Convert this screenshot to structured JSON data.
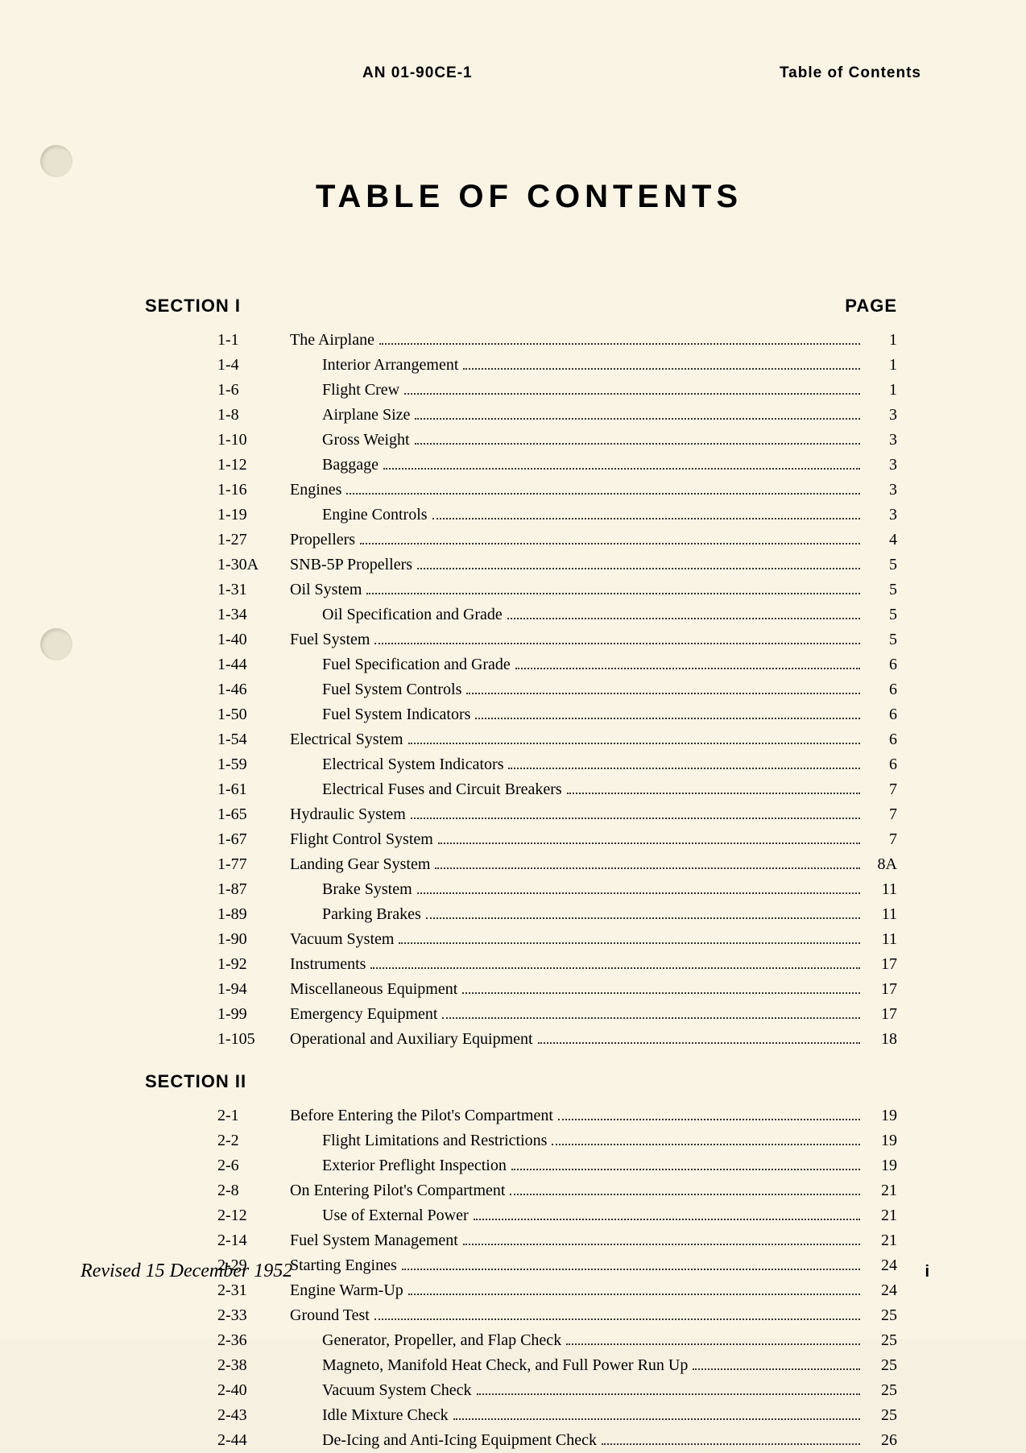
{
  "header": {
    "doc_id": "AN 01-90CE-1",
    "right": "Table of Contents"
  },
  "title": "TABLE OF CONTENTS",
  "page_label": "PAGE",
  "sections": [
    {
      "label": "SECTION I",
      "show_page_label": true,
      "entries": [
        {
          "num": "1-1",
          "text": "The Airplane",
          "page": "1",
          "indent": 0
        },
        {
          "num": "1-4",
          "text": "Interior Arrangement",
          "page": "1",
          "indent": 1
        },
        {
          "num": "1-6",
          "text": "Flight Crew",
          "page": "1",
          "indent": 1
        },
        {
          "num": "1-8",
          "text": "Airplane Size",
          "page": "3",
          "indent": 1
        },
        {
          "num": "1-10",
          "text": "Gross Weight",
          "page": "3",
          "indent": 1
        },
        {
          "num": "1-12",
          "text": "Baggage",
          "page": "3",
          "indent": 1
        },
        {
          "num": "1-16",
          "text": "Engines",
          "page": "3",
          "indent": 0
        },
        {
          "num": "1-19",
          "text": "Engine Controls",
          "page": "3",
          "indent": 1
        },
        {
          "num": "1-27",
          "text": "Propellers",
          "page": "4",
          "indent": 0
        },
        {
          "num": "1-30A",
          "text": "SNB-5P Propellers",
          "page": "5",
          "indent": 0
        },
        {
          "num": "1-31",
          "text": "Oil System",
          "page": "5",
          "indent": 0
        },
        {
          "num": "1-34",
          "text": "Oil Specification and Grade",
          "page": "5",
          "indent": 1
        },
        {
          "num": "1-40",
          "text": "Fuel System",
          "page": "5",
          "indent": 0
        },
        {
          "num": "1-44",
          "text": "Fuel Specification and Grade",
          "page": "6",
          "indent": 1
        },
        {
          "num": "1-46",
          "text": "Fuel System Controls",
          "page": "6",
          "indent": 1
        },
        {
          "num": "1-50",
          "text": "Fuel System Indicators",
          "page": "6",
          "indent": 1
        },
        {
          "num": "1-54",
          "text": "Electrical System",
          "page": "6",
          "indent": 0
        },
        {
          "num": "1-59",
          "text": "Electrical System Indicators",
          "page": "6",
          "indent": 1
        },
        {
          "num": "1-61",
          "text": "Electrical Fuses and Circuit Breakers",
          "page": "7",
          "indent": 1
        },
        {
          "num": "1-65",
          "text": "Hydraulic System",
          "page": "7",
          "indent": 0
        },
        {
          "num": "1-67",
          "text": "Flight Control System",
          "page": "7",
          "indent": 0
        },
        {
          "num": "1-77",
          "text": "Landing Gear System",
          "page": "8A",
          "indent": 0
        },
        {
          "num": "1-87",
          "text": "Brake System",
          "page": "11",
          "indent": 1
        },
        {
          "num": "1-89",
          "text": "Parking Brakes",
          "page": "11",
          "indent": 1
        },
        {
          "num": "1-90",
          "text": "Vacuum System",
          "page": "11",
          "indent": 0
        },
        {
          "num": "1-92",
          "text": "Instruments",
          "page": "17",
          "indent": 0
        },
        {
          "num": "1-94",
          "text": "Miscellaneous Equipment",
          "page": "17",
          "indent": 0
        },
        {
          "num": "1-99",
          "text": "Emergency Equipment",
          "page": "17",
          "indent": 0
        },
        {
          "num": "1-105",
          "text": "Operational and Auxiliary Equipment",
          "page": "18",
          "indent": 0
        }
      ]
    },
    {
      "label": "SECTION II",
      "show_page_label": false,
      "entries": [
        {
          "num": "2-1",
          "text": "Before Entering the Pilot's Compartment",
          "page": "19",
          "indent": 0
        },
        {
          "num": "2-2",
          "text": "Flight Limitations and Restrictions",
          "page": "19",
          "indent": 1
        },
        {
          "num": "2-6",
          "text": "Exterior Preflight Inspection",
          "page": "19",
          "indent": 1
        },
        {
          "num": "2-8",
          "text": "On Entering Pilot's Compartment",
          "page": "21",
          "indent": 0
        },
        {
          "num": "2-12",
          "text": "Use of External Power",
          "page": "21",
          "indent": 1
        },
        {
          "num": "2-14",
          "text": "Fuel System Management",
          "page": "21",
          "indent": 0
        },
        {
          "num": "2-29",
          "text": "Starting Engines",
          "page": "24",
          "indent": 0
        },
        {
          "num": "2-31",
          "text": "Engine Warm-Up",
          "page": "24",
          "indent": 0
        },
        {
          "num": "2-33",
          "text": "Ground Test",
          "page": "25",
          "indent": 0
        },
        {
          "num": "2-36",
          "text": "Generator, Propeller, and Flap Check",
          "page": "25",
          "indent": 1
        },
        {
          "num": "2-38",
          "text": "Magneto, Manifold Heat Check, and Full Power Run Up",
          "page": "25",
          "indent": 1
        },
        {
          "num": "2-40",
          "text": "Vacuum System Check",
          "page": "25",
          "indent": 1
        },
        {
          "num": "2-43",
          "text": "Idle Mixture Check",
          "page": "25",
          "indent": 1
        },
        {
          "num": "2-44",
          "text": "De-Icing and Anti-Icing Equipment Check",
          "page": "26",
          "indent": 1
        }
      ]
    }
  ],
  "footer": {
    "revised": "Revised 15 December 1952",
    "page_num": "i"
  },
  "style": {
    "background_color": "#f9f4e4",
    "text_color": "#1a1a1a",
    "title_fontsize": 40,
    "body_fontsize": 20,
    "header_fontsize": 19,
    "section_fontsize": 22
  }
}
